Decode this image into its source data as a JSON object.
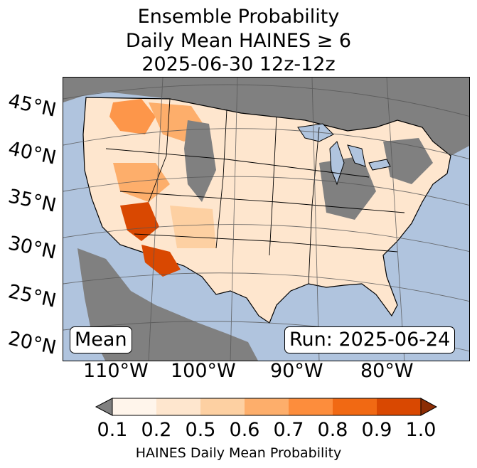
{
  "title": {
    "line1": "Ensemble Probability",
    "line2": "Daily Mean HAINES ≥ 6",
    "line3": "2025-06-30 12z-12z"
  },
  "map": {
    "projection": "lambert-conformal",
    "region": "Contiguous United States",
    "ocean_color": "#b0c4de",
    "land_nodata_color": "#808080",
    "lat_labels": [
      "45°N",
      "40°N",
      "35°N",
      "30°N",
      "25°N",
      "20°N"
    ],
    "lon_labels": [
      "110°W",
      "100°W",
      "90°W",
      "80°W"
    ]
  },
  "annotations": {
    "stat_label": "Mean",
    "run_label": "Run: 2025-06-24"
  },
  "colorbar": {
    "label": "HAINES Daily Mean Probability",
    "ticks": [
      "0.1",
      "0.2",
      "0.5",
      "0.6",
      "0.7",
      "0.8",
      "0.9",
      "1.0"
    ],
    "under_color": "#808080",
    "colors": [
      "#fff5eb",
      "#fee6ce",
      "#fdd0a2",
      "#fdae6b",
      "#fd8d3c",
      "#f16913",
      "#d94801"
    ],
    "over_color": "#8c2d04"
  }
}
